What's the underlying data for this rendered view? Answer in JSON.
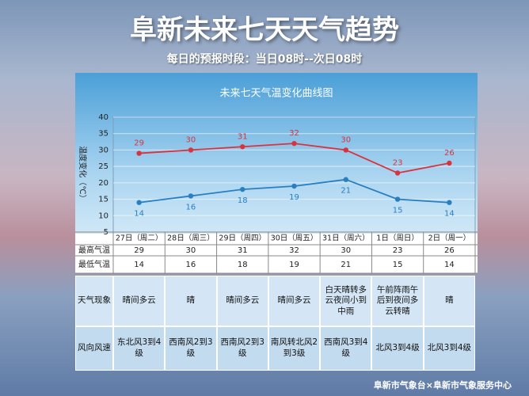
{
  "title": "阜新未来七天天气趋势",
  "subtitle": "每日的预报时段：当日08时--次日08时",
  "chart_data": {
    "type": "line",
    "title": "未来七天气温变化曲线图",
    "y_label": "温度变化（℃）",
    "categories": [
      "27日（周二）",
      "28日（周三）",
      "29日（周四）",
      "30日（周五）",
      "31日（周六）",
      "1日（周日）",
      "2日（周一）"
    ],
    "series": [
      {
        "name": "最高气温",
        "color": "#d9333f",
        "values": [
          29,
          30,
          31,
          32,
          30,
          23,
          26
        ]
      },
      {
        "name": "最低气温",
        "color": "#2a7fc0",
        "values": [
          14,
          16,
          18,
          19,
          21,
          15,
          14
        ]
      }
    ],
    "ylim": [
      5,
      40
    ],
    "yticks": [
      5,
      10,
      15,
      20,
      25,
      30,
      35,
      40
    ],
    "grid": true
  },
  "table": {
    "rows": [
      {
        "label": "天气现象",
        "cells": [
          "晴间多云",
          "晴",
          "晴间多云",
          "晴间多云",
          "白天晴转多云夜间小到中雨",
          "午前阵雨午后到夜间多云转晴",
          "晴"
        ]
      },
      {
        "label": "风向风速",
        "cells": [
          "东北风3到4级",
          "西南风2到3级",
          "西南风2到3级",
          "南风转北风2到3级",
          "西南风3到4级",
          "北风3到4级",
          "北风3到4级"
        ]
      }
    ]
  },
  "footer": "阜新市气象台×阜新市气象服务中心"
}
